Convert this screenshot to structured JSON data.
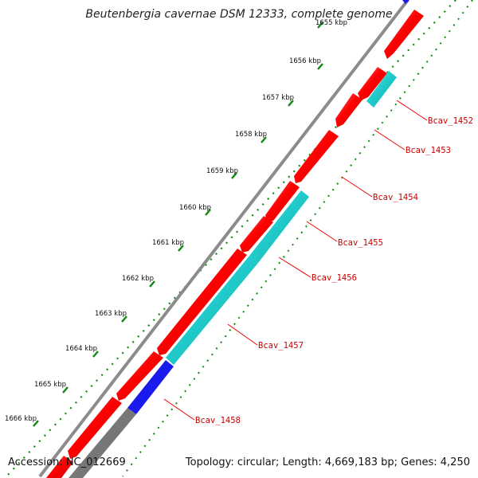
{
  "title": "Beutenbergia cavernae DSM 12333, complete genome",
  "footer": {
    "accession": "Accession: NC_012669",
    "summary": "Topology: circular; Length: 4,669,183 bp; Genes: 4,250"
  },
  "colors": {
    "backbone": "#8c8c8c",
    "forward_gene": "#ff0000",
    "reverse_gene": "#22cccc",
    "blue_feature": "#1a1aee",
    "gray_feature": "#777777",
    "ticks": "#118811",
    "labels": "#c80000"
  },
  "scale": {
    "ticks": [
      {
        "label": "1655 kbp"
      },
      {
        "label": "1656 kbp"
      },
      {
        "label": "1657 kbp"
      },
      {
        "label": "1658 kbp"
      },
      {
        "label": "1659 kbp"
      },
      {
        "label": "1660 kbp"
      },
      {
        "label": "1661 kbp"
      },
      {
        "label": "1662 kbp"
      },
      {
        "label": "1663 kbp"
      },
      {
        "label": "1664 kbp"
      },
      {
        "label": "1665 kbp"
      },
      {
        "label": "1666 kbp"
      }
    ]
  },
  "genes": [
    {
      "label": "Bcav_1452"
    },
    {
      "label": "Bcav_1453"
    },
    {
      "label": "Bcav_1454"
    },
    {
      "label": "Bcav_1455"
    },
    {
      "label": "Bcav_1456"
    },
    {
      "label": "Bcav_1457"
    },
    {
      "label": "Bcav_1458"
    }
  ]
}
